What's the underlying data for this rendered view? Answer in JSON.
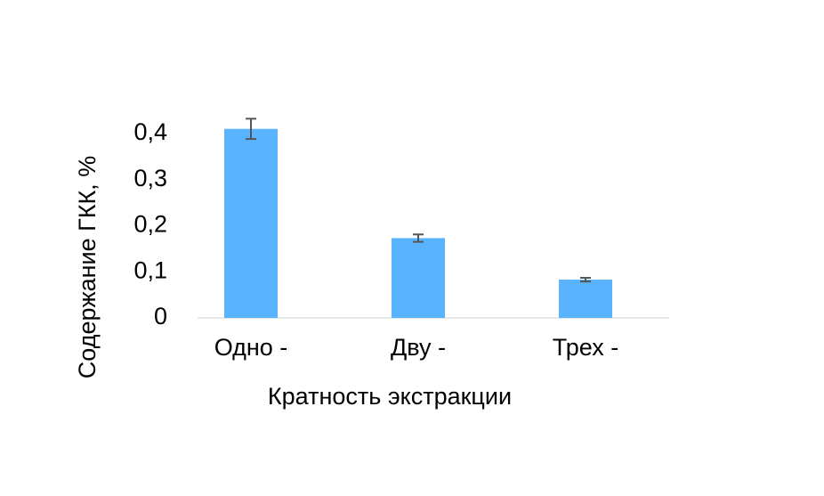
{
  "chart_data": {
    "type": "bar",
    "x_label": "Кратность экстракции",
    "y_label": "Содержание ГКК, %",
    "categories": [
      "Одно -",
      "Дву -",
      "Трех -"
    ],
    "values": [
      0.41,
      0.173,
      0.083
    ],
    "errors": [
      0.022,
      0.008,
      0.004
    ],
    "color": "#59b3ff",
    "ylim": [
      0,
      0.45
    ],
    "yticks": [
      0,
      {
        "value": 0.1,
        "label": "0,1"
      },
      {
        "value": 0.2,
        "label": "0,2"
      },
      {
        "value": 0.3,
        "label": "0,3"
      },
      {
        "value": 0.4,
        "label": "0,4"
      }
    ]
  }
}
